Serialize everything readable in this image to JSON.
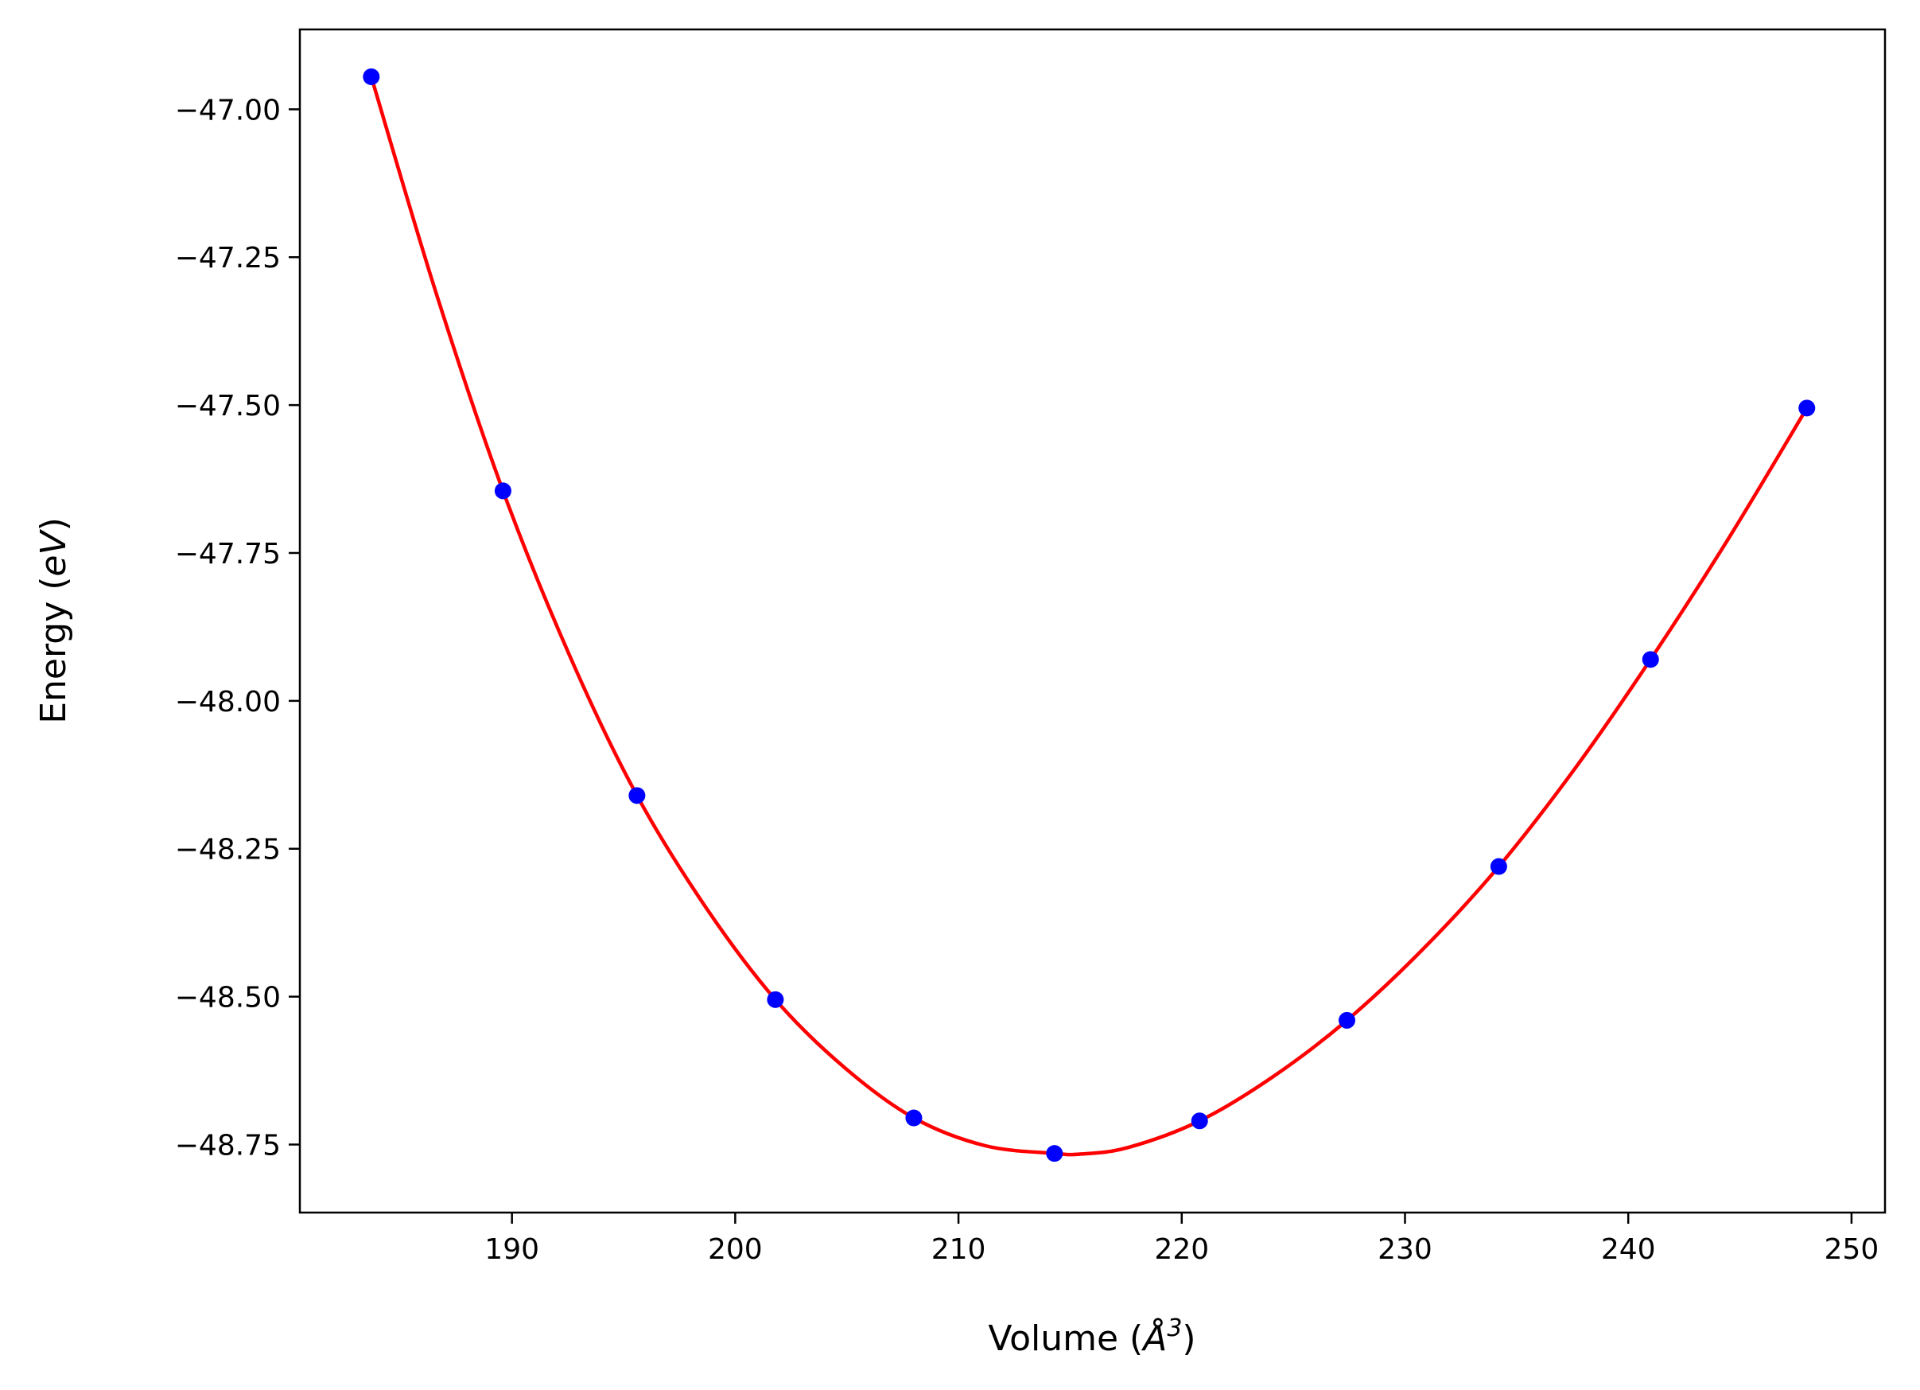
{
  "chart_data": {
    "type": "scatter",
    "xlabel": "Volume (",
    "xlabel_symbol": "Å",
    "xlabel_sup": "3",
    "xlabel_end": ")",
    "ylabel": "Energy (",
    "ylabel_unit": "eV",
    "ylabel_end": ")",
    "xlim": [
      180.5,
      251.5
    ],
    "ylim": [
      -48.865,
      -46.865
    ],
    "xticks": [
      190,
      200,
      210,
      220,
      230,
      240,
      250
    ],
    "xtick_labels": [
      "190",
      "200",
      "210",
      "220",
      "230",
      "240",
      "250"
    ],
    "yticks": [
      -47.0,
      -47.25,
      -47.5,
      -47.75,
      -48.0,
      -48.25,
      -48.5,
      -48.75
    ],
    "ytick_labels": [
      "−47.00",
      "−47.25",
      "−47.50",
      "−47.75",
      "−48.00",
      "−48.25",
      "−48.50",
      "−48.75"
    ],
    "grid": false,
    "series": [
      {
        "kind": "points",
        "color": "#0000ff",
        "x": [
          183.7,
          189.6,
          195.6,
          201.8,
          208.0,
          214.3,
          220.8,
          227.4,
          234.2,
          241.0,
          248.0
        ],
        "y": [
          -46.945,
          -47.645,
          -48.16,
          -48.505,
          -48.705,
          -48.765,
          -48.71,
          -48.54,
          -48.28,
          -47.93,
          -47.505
        ]
      },
      {
        "kind": "fit",
        "color": "#ff0000",
        "x": [
          183.7,
          186.6,
          189.6,
          192.6,
          195.6,
          198.7,
          201.8,
          204.9,
          208.0,
          211.2,
          214.3,
          215.5,
          217.6,
          220.8,
          224.1,
          227.4,
          230.8,
          234.2,
          237.6,
          241.0,
          244.5,
          248.0
        ],
        "y": [
          -46.945,
          -47.31,
          -47.645,
          -47.925,
          -48.16,
          -48.35,
          -48.505,
          -48.62,
          -48.705,
          -48.752,
          -48.765,
          -48.766,
          -48.755,
          -48.71,
          -48.635,
          -48.54,
          -48.42,
          -48.28,
          -48.115,
          -47.93,
          -47.725,
          -47.505
        ]
      }
    ]
  }
}
